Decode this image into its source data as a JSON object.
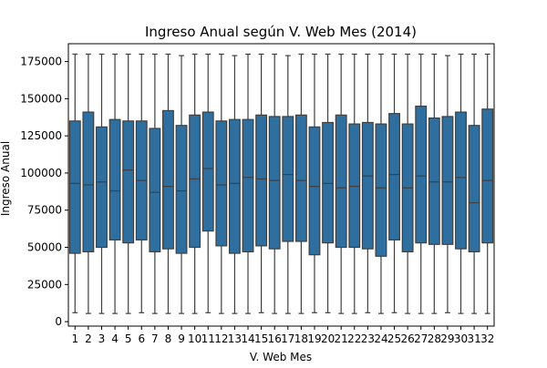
{
  "chart_data": {
    "type": "boxplot",
    "title": "Ingreso Anual según V. Web Mes (2014)",
    "xlabel": "V. Web Mes",
    "ylabel": "Ingreso Anual",
    "ylim": [
      -3000,
      187000
    ],
    "yticks": [
      0,
      25000,
      50000,
      75000,
      100000,
      125000,
      150000,
      175000
    ],
    "ytick_labels": [
      "0",
      "25000",
      "50000",
      "75000",
      "100000",
      "125000",
      "150000",
      "175000"
    ],
    "box_color": "#2f6f9f",
    "grid": false,
    "legend": "none",
    "categories": [
      "1",
      "2",
      "3",
      "4",
      "5",
      "6",
      "7",
      "8",
      "9",
      "10",
      "11",
      "12",
      "13",
      "14",
      "15",
      "16",
      "17",
      "18",
      "19",
      "20",
      "21",
      "22",
      "23",
      "24",
      "25",
      "26",
      "27",
      "28",
      "29",
      "30",
      "31",
      "32"
    ],
    "boxes": [
      {
        "min": 6000,
        "q1": 46000,
        "median": 93000,
        "q3": 135000,
        "max": 180000
      },
      {
        "min": 5500,
        "q1": 47000,
        "median": 92000,
        "q3": 141000,
        "max": 180000
      },
      {
        "min": 5500,
        "q1": 50000,
        "median": 94000,
        "q3": 131000,
        "max": 180000
      },
      {
        "min": 5500,
        "q1": 55000,
        "median": 88000,
        "q3": 136000,
        "max": 180000
      },
      {
        "min": 5500,
        "q1": 53000,
        "median": 102000,
        "q3": 135000,
        "max": 180000
      },
      {
        "min": 6000,
        "q1": 55000,
        "median": 95000,
        "q3": 135000,
        "max": 180000
      },
      {
        "min": 5500,
        "q1": 47000,
        "median": 87000,
        "q3": 130000,
        "max": 180000
      },
      {
        "min": 5500,
        "q1": 49000,
        "median": 91000,
        "q3": 142000,
        "max": 180000
      },
      {
        "min": 5500,
        "q1": 46000,
        "median": 88000,
        "q3": 132000,
        "max": 179000
      },
      {
        "min": 5500,
        "q1": 50000,
        "median": 96000,
        "q3": 139000,
        "max": 180000
      },
      {
        "min": 6000,
        "q1": 61000,
        "median": 103000,
        "q3": 141000,
        "max": 180000
      },
      {
        "min": 5500,
        "q1": 51000,
        "median": 92000,
        "q3": 135000,
        "max": 180000
      },
      {
        "min": 5500,
        "q1": 46000,
        "median": 93000,
        "q3": 136000,
        "max": 179000
      },
      {
        "min": 5500,
        "q1": 47000,
        "median": 97000,
        "q3": 136000,
        "max": 180000
      },
      {
        "min": 6000,
        "q1": 51000,
        "median": 96000,
        "q3": 139000,
        "max": 180000
      },
      {
        "min": 5500,
        "q1": 49000,
        "median": 95000,
        "q3": 138000,
        "max": 180000
      },
      {
        "min": 5500,
        "q1": 54000,
        "median": 99000,
        "q3": 138000,
        "max": 179000
      },
      {
        "min": 5500,
        "q1": 54000,
        "median": 95000,
        "q3": 139000,
        "max": 180000
      },
      {
        "min": 6000,
        "q1": 45000,
        "median": 91000,
        "q3": 131000,
        "max": 180000
      },
      {
        "min": 6000,
        "q1": 53000,
        "median": 93000,
        "q3": 134000,
        "max": 180000
      },
      {
        "min": 5500,
        "q1": 50000,
        "median": 90000,
        "q3": 139000,
        "max": 180000
      },
      {
        "min": 5500,
        "q1": 50000,
        "median": 91000,
        "q3": 133000,
        "max": 180000
      },
      {
        "min": 6000,
        "q1": 49000,
        "median": 98000,
        "q3": 134000,
        "max": 180000
      },
      {
        "min": 5500,
        "q1": 44000,
        "median": 90000,
        "q3": 133000,
        "max": 180000
      },
      {
        "min": 6000,
        "q1": 55000,
        "median": 99000,
        "q3": 140000,
        "max": 180000
      },
      {
        "min": 5500,
        "q1": 47000,
        "median": 90000,
        "q3": 133000,
        "max": 180000
      },
      {
        "min": 5500,
        "q1": 53000,
        "median": 98000,
        "q3": 145000,
        "max": 180000
      },
      {
        "min": 5500,
        "q1": 52000,
        "median": 94000,
        "q3": 137000,
        "max": 180000
      },
      {
        "min": 6000,
        "q1": 52000,
        "median": 94000,
        "q3": 138000,
        "max": 179000
      },
      {
        "min": 5500,
        "q1": 49000,
        "median": 97000,
        "q3": 141000,
        "max": 180000
      },
      {
        "min": 5500,
        "q1": 47000,
        "median": 80000,
        "q3": 132000,
        "max": 180000
      },
      {
        "min": 5500,
        "q1": 53000,
        "median": 95000,
        "q3": 143000,
        "max": 180000
      }
    ]
  }
}
